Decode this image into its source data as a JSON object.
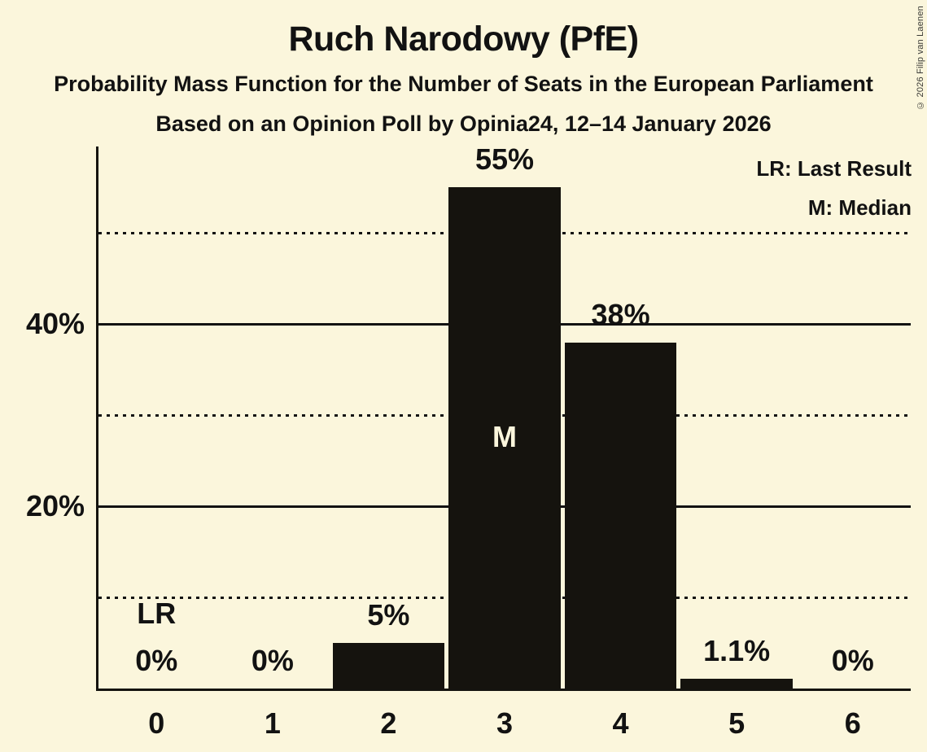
{
  "chart_data": {
    "type": "bar",
    "title": "Ruch Narodowy (PfE)",
    "subtitle": "Probability Mass Function for the Number of Seats in the European Parliament",
    "poll_line": "Based on an Opinion Poll by Opinia24, 12–14 January 2026",
    "categories": [
      "0",
      "1",
      "2",
      "3",
      "4",
      "5",
      "6"
    ],
    "values": [
      0,
      0,
      5,
      55,
      38,
      1.1,
      0
    ],
    "bar_labels": [
      "0%",
      "0%",
      "5%",
      "55%",
      "38%",
      "1.1%",
      "0%"
    ],
    "y_ticks": [
      {
        "value": 20,
        "label": "20%"
      },
      {
        "value": 40,
        "label": "40%"
      }
    ],
    "gridlines_dotted": [
      10,
      30,
      50
    ],
    "gridlines_solid": [
      20,
      40
    ],
    "ylim": [
      0,
      59.5
    ],
    "grid": true,
    "legend_position": "top-right",
    "legend": [
      "LR: Last Result",
      "M: Median"
    ],
    "annotations": [
      {
        "category_index": 0,
        "text": "LR",
        "meaning": "Last Result",
        "placement": "above-value-label"
      },
      {
        "category_index": 3,
        "text": "M",
        "meaning": "Median",
        "placement": "inside-bar"
      }
    ]
  },
  "legend": {
    "lr": "LR: Last Result",
    "m": "M: Median"
  },
  "copyright": "© 2026 Filip van Laenen",
  "colors": {
    "background": "#FBF6DC",
    "bar": "#15130E",
    "text": "#121212",
    "inside_bar_label": "#FBF6DC"
  }
}
